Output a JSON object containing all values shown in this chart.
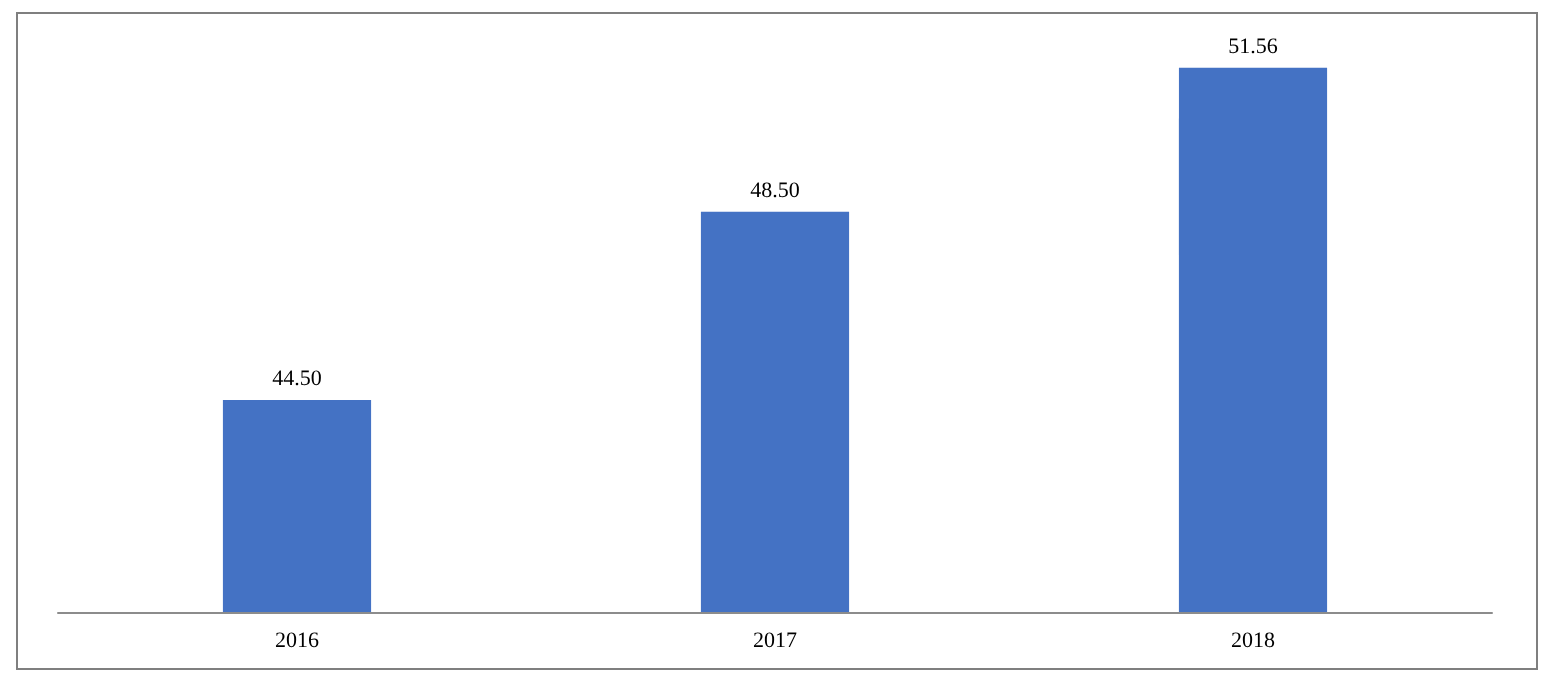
{
  "chart_data": {
    "type": "bar",
    "categories": [
      "2016",
      "2017",
      "2018"
    ],
    "values": [
      44.5,
      48.5,
      51.56
    ],
    "color": "#4472c4",
    "value_labels": [
      "44.50",
      "48.50",
      "51.56"
    ],
    "ylim": [
      40,
      52.7
    ],
    "tick_labels": "x"
  }
}
